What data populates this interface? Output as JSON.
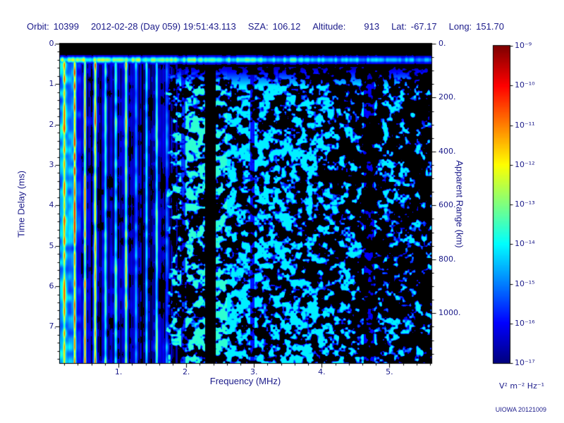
{
  "header": {
    "orbit_label": "Orbit:",
    "orbit": "10399",
    "datetime": "2012-02-28 (Day 059) 19:51:43.113",
    "sza_label": "SZA:",
    "sza": "106.12",
    "altitude_label": "Altitude:",
    "altitude": "913",
    "lat_label": "Lat:",
    "lat": "-67.17",
    "long_label": "Long:",
    "long": "151.70"
  },
  "watermark": "UIOWA 20121009",
  "colors": {
    "annotation_text": "#1b1b8a",
    "plot_background": "#000000",
    "page_background": "#ffffff"
  },
  "chart_data": {
    "type": "heatmap",
    "description": "Radar sounder ionogram: received spectral density vs frequency (x) and echo time delay (y) on a rainbow log color scale over black. Bright vertical resonance stripes below ~1.8 MHz, a bright horizontal direct-signal line near 0.4 ms spanning all frequencies, a diffuse blue speckled echo field from ~1.8 to 5.6 MHz fading toward high frequency, and narrow dark vertical gaps near 2.0, 2.35, 3.0 and 4.7 MHz.",
    "x_axis": {
      "label": "Frequency (MHz)",
      "min": 0.135,
      "max": 5.62,
      "major_ticks": [
        1,
        2,
        3,
        4,
        5
      ],
      "tick_labels": [
        "1.",
        "2.",
        "3.",
        "4.",
        "5."
      ],
      "minor_step": 0.2
    },
    "y_axis": {
      "label": "Time Delay (ms)",
      "min": 0,
      "max": 7.9,
      "major_ticks": [
        0,
        1,
        2,
        3,
        4,
        5,
        6,
        7
      ],
      "tick_labels": [
        "0.",
        "1.",
        "2.",
        "3.",
        "4.",
        "5.",
        "6.",
        "7."
      ],
      "minor_step": 0.2,
      "direction": "down"
    },
    "y_axis_right": {
      "label": "Apparent Range (km)",
      "min": 0,
      "max": 1185,
      "major_ticks": [
        0,
        200,
        400,
        600,
        800,
        1000
      ],
      "tick_labels": [
        "0.",
        "200.",
        "400.",
        "600.",
        "800.",
        "1000."
      ],
      "minor_step": 50
    },
    "colorbar": {
      "scale": "log",
      "unit": "V² m⁻² Hz⁻¹",
      "colormap": "rainbow",
      "max_label": "10⁻⁹",
      "min_label": "10⁻¹⁷",
      "tick_labels": [
        "10⁻⁹",
        "10⁻¹⁰",
        "10⁻¹¹",
        "10⁻¹²",
        "10⁻¹³",
        "10⁻¹⁴",
        "10⁻¹⁵",
        "10⁻¹⁶",
        "10⁻¹⁷"
      ]
    },
    "features": {
      "seed": 20121009,
      "top_blank_band_ms": 0.2,
      "surface_line": {
        "time_ms": 0.4,
        "sigma_ms": 0.055,
        "amp_low_freq": 0.62,
        "amp_slope": 0.3
      },
      "stripe_region": {
        "freq_max_mhz": 1.78,
        "line_spacing_mhz": 0.1515
      },
      "speckle": {
        "amp_max": 0.42
      },
      "dark_gaps_mhz": [
        [
          2.28,
          2.44,
          0.07
        ],
        [
          1.93,
          1.99,
          0.45
        ],
        [
          2.95,
          3.01,
          0.4
        ],
        [
          4.62,
          4.78,
          0.35
        ]
      ]
    }
  }
}
